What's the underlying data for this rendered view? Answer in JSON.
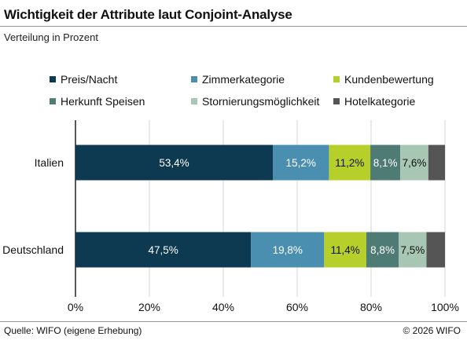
{
  "header": {
    "title": "Wichtigkeit der Attribute laut Conjoint-Analyse",
    "subtitle": "Verteilung in Prozent"
  },
  "footer": {
    "source": "Quelle: WIFO (eigene Erhebung)",
    "copyright": "© 2026 WIFO"
  },
  "chart_data": {
    "type": "bar",
    "orientation": "horizontal",
    "stacked": true,
    "categories": [
      "Italien",
      "Deutschland"
    ],
    "series": [
      {
        "name": "Preis/Nacht",
        "color": "#0d3a50",
        "values": [
          53.4,
          47.5
        ],
        "labels": [
          "53,4%",
          "47,5%"
        ]
      },
      {
        "name": "Zimmerkategorie",
        "color": "#4b8fb0",
        "values": [
          15.2,
          19.8
        ],
        "labels": [
          "15,2%",
          "19,8%"
        ]
      },
      {
        "name": "Kundenbewertung",
        "color": "#b7cf2b",
        "values": [
          11.2,
          11.4
        ],
        "labels": [
          "11,2%",
          "11,4%"
        ]
      },
      {
        "name": "Herkunft Speisen",
        "color": "#4f7b75",
        "values": [
          8.1,
          8.8
        ],
        "labels": [
          "8,1%",
          "8,8%"
        ]
      },
      {
        "name": "Stornierungsmöglichkeit",
        "color": "#a8c6b4",
        "values": [
          7.6,
          7.5
        ],
        "labels": [
          "7,6%",
          "7,5%"
        ]
      },
      {
        "name": "Hotelkategorie",
        "color": "#555555",
        "values": [
          4.5,
          5.0
        ],
        "labels": [
          "",
          ""
        ]
      }
    ],
    "xlim": [
      0,
      100
    ],
    "xticks": [
      0,
      20,
      40,
      60,
      80,
      100
    ],
    "xtick_labels": [
      "0%",
      "20%",
      "40%",
      "60%",
      "80%",
      "100%"
    ],
    "grid": true,
    "legend_position": "top"
  }
}
